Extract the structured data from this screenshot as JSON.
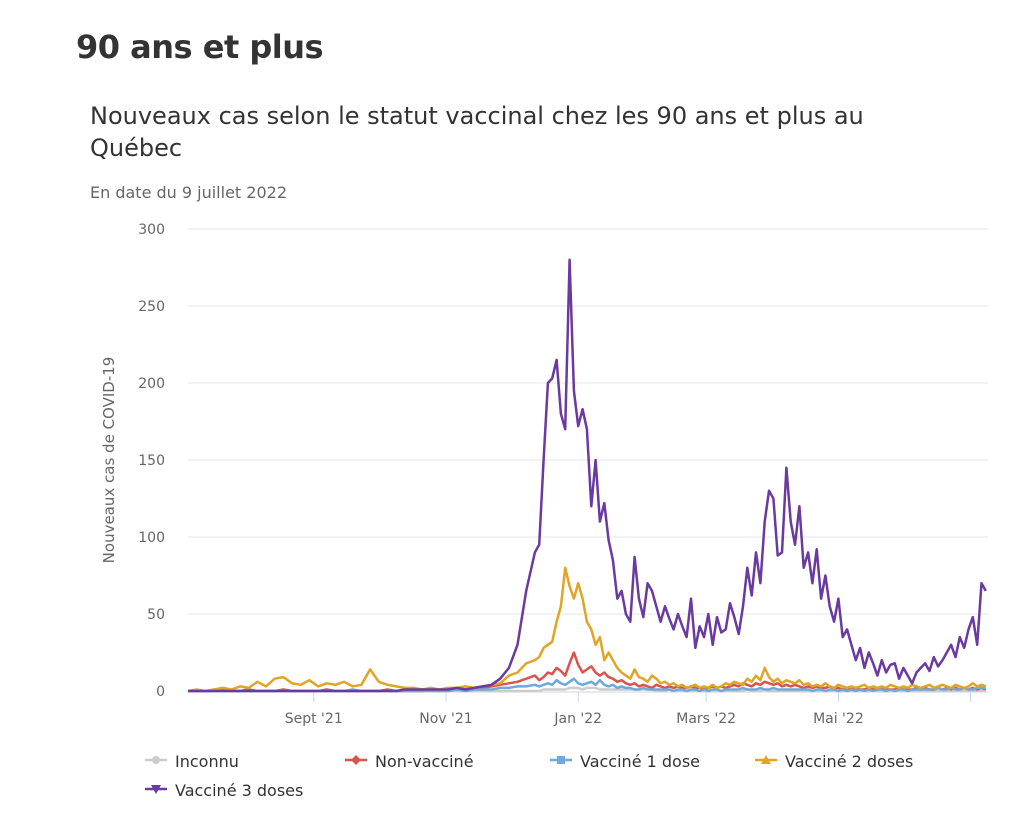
{
  "page": {
    "section_title": "90 ans et plus"
  },
  "chart_data": {
    "type": "line",
    "title": "Nouveaux cas selon le statut vaccinal chez les 90 ans et plus au Québec",
    "subtitle": "En date du 9 juillet 2022",
    "xlabel": "",
    "ylabel": "Nouveaux cas de COVID-19",
    "ylim": [
      0,
      300
    ],
    "yticks": [
      0,
      50,
      100,
      150,
      200,
      250,
      300
    ],
    "xlim": [
      "2021-07-05",
      "2022-07-09"
    ],
    "xticks": [
      {
        "date": "2021-09-01",
        "label": "Sept '21"
      },
      {
        "date": "2021-11-01",
        "label": "Nov '21"
      },
      {
        "date": "2022-01-01",
        "label": "Jan '22"
      },
      {
        "date": "2022-03-01",
        "label": "Mars '22"
      },
      {
        "date": "2022-05-01",
        "label": "Mai '22"
      },
      {
        "date": "2022-07-01",
        "label": ""
      }
    ],
    "grid": true,
    "legend_position": "bottom",
    "x_day_offsets_note": "x values are days since 2021-07-05",
    "x": [
      0,
      4,
      8,
      12,
      16,
      20,
      24,
      28,
      32,
      36,
      40,
      44,
      48,
      52,
      56,
      60,
      64,
      68,
      72,
      76,
      80,
      84,
      88,
      92,
      96,
      100,
      104,
      108,
      112,
      116,
      120,
      124,
      128,
      132,
      136,
      140,
      144,
      148,
      152,
      156,
      160,
      162,
      164,
      166,
      168,
      170,
      172,
      174,
      176,
      178,
      180,
      182,
      184,
      186,
      188,
      190,
      192,
      194,
      196,
      198,
      200,
      202,
      204,
      206,
      208,
      210,
      212,
      214,
      216,
      218,
      220,
      222,
      224,
      226,
      228,
      230,
      232,
      234,
      236,
      238,
      240,
      242,
      244,
      246,
      248,
      250,
      252,
      254,
      256,
      258,
      260,
      262,
      264,
      266,
      268,
      270,
      272,
      274,
      276,
      278,
      280,
      282,
      284,
      286,
      288,
      290,
      292,
      294,
      296,
      298,
      300,
      302,
      304,
      306,
      308,
      310,
      312,
      314,
      316,
      318,
      320,
      322,
      324,
      326,
      328,
      330,
      332,
      334,
      336,
      338,
      340,
      342,
      344,
      346,
      348,
      350,
      352,
      354,
      356,
      358,
      360,
      362,
      364,
      366,
      368
    ],
    "series": [
      {
        "name": "Inconnu",
        "color": "#cccccc",
        "marker": "circle",
        "values": [
          0,
          0,
          0,
          0,
          0,
          0,
          0,
          0,
          0,
          0,
          0,
          0,
          0,
          0,
          0,
          0,
          0,
          0,
          0,
          0,
          0,
          0,
          0,
          0,
          0,
          0,
          0,
          0,
          0,
          0,
          0,
          0,
          0,
          0,
          0,
          0,
          0,
          0,
          0,
          0,
          0,
          0,
          1,
          1,
          1,
          1,
          1,
          1,
          2,
          2,
          2,
          1,
          2,
          2,
          2,
          1,
          1,
          1,
          1,
          1,
          1,
          1,
          1,
          1,
          1,
          1,
          1,
          1,
          0,
          0,
          0,
          1,
          0,
          0,
          0,
          0,
          0,
          0,
          0,
          0,
          0,
          0,
          0,
          0,
          0,
          0,
          0,
          0,
          0,
          1,
          0,
          0,
          0,
          1,
          0,
          0,
          0,
          0,
          0,
          0,
          0,
          0,
          0,
          0,
          0,
          0,
          0,
          0,
          0,
          0,
          0,
          0,
          0,
          0,
          0,
          0,
          0,
          0,
          0,
          0,
          0,
          0,
          0,
          0,
          0,
          0,
          0,
          0,
          0,
          0,
          0,
          0,
          0,
          0,
          0,
          0,
          0,
          0,
          0,
          0,
          0,
          0,
          0,
          0,
          0
        ]
      },
      {
        "name": "Non-vacciné",
        "color": "#d9534f",
        "marker": "diamond",
        "values": [
          0,
          0,
          0,
          0,
          1,
          0,
          0,
          1,
          0,
          0,
          0,
          1,
          0,
          0,
          0,
          0,
          1,
          0,
          0,
          0,
          0,
          0,
          0,
          1,
          0,
          0,
          0,
          0,
          1,
          0,
          1,
          1,
          1,
          2,
          2,
          3,
          4,
          5,
          6,
          8,
          10,
          7,
          9,
          12,
          11,
          15,
          13,
          10,
          18,
          25,
          17,
          12,
          14,
          16,
          12,
          10,
          12,
          9,
          8,
          6,
          7,
          5,
          4,
          5,
          3,
          4,
          3,
          2,
          4,
          3,
          2,
          3,
          2,
          3,
          2,
          2,
          3,
          2,
          2,
          1,
          2,
          3,
          2,
          3,
          2,
          3,
          4,
          3,
          5,
          4,
          3,
          5,
          4,
          6,
          5,
          4,
          5,
          3,
          4,
          3,
          4,
          3,
          2,
          3,
          2,
          3,
          2,
          2,
          3,
          2,
          2,
          1,
          2,
          1,
          2,
          1,
          1,
          2,
          1,
          1,
          2,
          1,
          1,
          1,
          2,
          1,
          1,
          1,
          2,
          1,
          2,
          1,
          1,
          2,
          1,
          2,
          1,
          2,
          1,
          2,
          1,
          2,
          1,
          2,
          1
        ]
      },
      {
        "name": "Vacciné 1 dose",
        "color": "#6fa8dc",
        "marker": "square",
        "values": [
          0,
          0,
          0,
          0,
          0,
          0,
          0,
          0,
          0,
          0,
          0,
          0,
          0,
          0,
          0,
          0,
          0,
          0,
          0,
          1,
          0,
          0,
          0,
          0,
          0,
          0,
          0,
          0,
          0,
          0,
          0,
          1,
          0,
          1,
          1,
          1,
          2,
          2,
          3,
          3,
          4,
          3,
          4,
          5,
          4,
          7,
          5,
          4,
          6,
          8,
          5,
          4,
          5,
          6,
          4,
          7,
          4,
          3,
          4,
          2,
          3,
          2,
          2,
          1,
          1,
          2,
          1,
          1,
          1,
          1,
          1,
          1,
          0,
          1,
          1,
          0,
          1,
          1,
          0,
          1,
          0,
          1,
          1,
          0,
          1,
          1,
          1,
          1,
          2,
          1,
          1,
          1,
          2,
          1,
          1,
          2,
          1,
          1,
          1,
          1,
          1,
          1,
          1,
          1,
          0,
          1,
          1,
          0,
          1,
          1,
          0,
          1,
          0,
          1,
          0,
          1,
          0,
          1,
          0,
          1,
          1,
          0,
          1,
          0,
          1,
          1,
          0,
          1,
          1,
          1,
          1,
          1,
          1,
          2,
          1,
          1,
          2,
          1,
          1,
          2,
          1,
          1,
          2,
          2,
          2
        ]
      },
      {
        "name": "Vacciné 2 doses",
        "color": "#e0a526",
        "marker": "triangle",
        "values": [
          0,
          1,
          0,
          1,
          2,
          1,
          3,
          2,
          6,
          3,
          8,
          9,
          5,
          4,
          7,
          3,
          5,
          4,
          6,
          3,
          4,
          14,
          6,
          4,
          3,
          2,
          2,
          1,
          2,
          1,
          2,
          2,
          3,
          2,
          3,
          4,
          5,
          10,
          12,
          18,
          20,
          22,
          28,
          30,
          32,
          45,
          55,
          80,
          68,
          60,
          70,
          60,
          45,
          40,
          30,
          35,
          20,
          25,
          20,
          15,
          12,
          10,
          8,
          14,
          9,
          8,
          6,
          10,
          8,
          5,
          6,
          4,
          5,
          3,
          4,
          2,
          3,
          4,
          2,
          3,
          2,
          4,
          2,
          3,
          5,
          4,
          6,
          5,
          4,
          8,
          6,
          10,
          7,
          15,
          9,
          6,
          8,
          5,
          7,
          6,
          5,
          7,
          4,
          5,
          3,
          4,
          3,
          5,
          3,
          2,
          4,
          3,
          2,
          3,
          2,
          3,
          4,
          2,
          3,
          2,
          3,
          2,
          4,
          3,
          2,
          3,
          2,
          4,
          3,
          2,
          3,
          4,
          2,
          3,
          4,
          3,
          2,
          4,
          3,
          2,
          3,
          5,
          3,
          4,
          3
        ]
      },
      {
        "name": "Vacciné 3 doses",
        "color": "#6a3aa0",
        "marker": "triangle-down",
        "values": [
          0,
          0,
          0,
          0,
          0,
          0,
          0,
          0,
          0,
          0,
          0,
          0,
          0,
          0,
          0,
          0,
          0,
          0,
          0,
          0,
          0,
          0,
          0,
          0,
          0,
          1,
          1,
          1,
          1,
          1,
          1,
          2,
          1,
          2,
          3,
          4,
          8,
          15,
          30,
          65,
          90,
          95,
          150,
          200,
          203,
          215,
          180,
          170,
          280,
          195,
          172,
          183,
          170,
          120,
          150,
          110,
          122,
          98,
          85,
          60,
          65,
          50,
          45,
          87,
          60,
          48,
          70,
          65,
          55,
          45,
          55,
          47,
          40,
          50,
          42,
          35,
          60,
          28,
          42,
          35,
          50,
          30,
          48,
          38,
          40,
          57,
          48,
          37,
          55,
          80,
          62,
          90,
          70,
          110,
          130,
          125,
          88,
          90,
          145,
          110,
          95,
          120,
          80,
          90,
          70,
          92,
          60,
          75,
          55,
          45,
          60,
          35,
          40,
          30,
          20,
          28,
          15,
          25,
          18,
          10,
          20,
          12,
          17,
          18,
          8,
          15,
          10,
          5,
          12,
          15,
          18,
          13,
          22,
          16,
          20,
          25,
          30,
          22,
          35,
          28,
          40,
          48,
          30,
          70,
          65
        ]
      }
    ]
  }
}
